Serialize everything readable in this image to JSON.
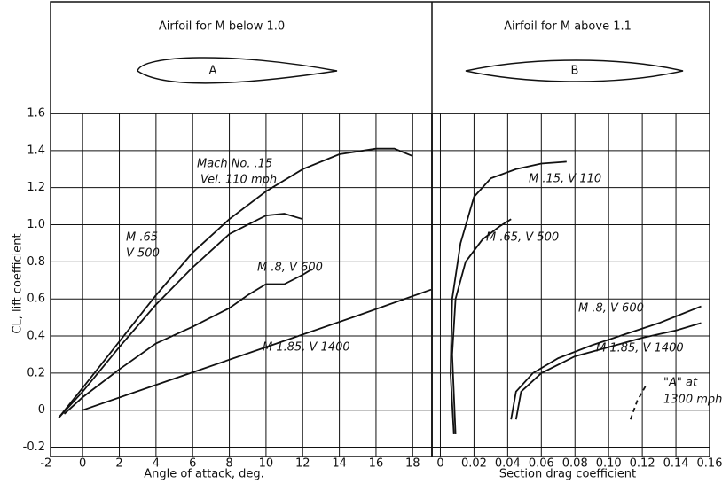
{
  "chart_data": [
    {
      "type": "line",
      "header": "Airfoil for M below 1.0",
      "airfoil_label": "A",
      "xlabel": "Angle of attack, deg.",
      "ylabel": "CL, lift coefficient",
      "xlim": [
        -1.75,
        19.05
      ],
      "ylim": [
        -0.25,
        1.6
      ],
      "xticks": [
        -2,
        0,
        2,
        4,
        6,
        8,
        10,
        12,
        14,
        16,
        18
      ],
      "yticks": [
        -0.2,
        0,
        0.2,
        0.4,
        0.6,
        0.8,
        {
          "value": 1,
          "label": "1.0"
        },
        1.2,
        1.4,
        1.6
      ],
      "grid": true,
      "series": [
        {
          "label": [
            "Mach No. .15",
            "Vel. 110 mph"
          ],
          "color": "#111111",
          "x": [
            -1.3,
            0,
            2,
            4,
            6,
            8,
            10,
            12,
            14,
            16,
            17,
            18
          ],
          "values": [
            -0.04,
            0.12,
            0.37,
            0.62,
            0.85,
            1.03,
            1.18,
            1.3,
            1.38,
            1.41,
            1.41,
            1.37
          ]
        },
        {
          "label": [
            "M  .65",
            "V  500"
          ],
          "color": "#111111",
          "x": [
            -1.3,
            0,
            2,
            4,
            6,
            8,
            10,
            11,
            12
          ],
          "values": [
            -0.04,
            0.1,
            0.34,
            0.57,
            0.77,
            0.95,
            1.05,
            1.06,
            1.03
          ]
        },
        {
          "label": [
            "M .8, V 600"
          ],
          "color": "#111111",
          "x": [
            -1,
            0,
            2,
            4,
            6,
            8,
            9,
            10,
            11,
            12,
            12.5
          ],
          "values": [
            -0.02,
            0.07,
            0.22,
            0.36,
            0.45,
            0.55,
            0.62,
            0.68,
            0.68,
            0.73,
            0.76
          ]
        },
        {
          "label": [
            "M 1.85, V 1400"
          ],
          "color": "#111111",
          "x": [
            0,
            5,
            10,
            15,
            19
          ],
          "values": [
            0,
            0.17,
            0.34,
            0.51,
            0.65
          ]
        }
      ]
    },
    {
      "type": "line",
      "header": "Airfoil for M above 1.1",
      "airfoil_label": "B",
      "xlabel": "Section drag coefficient",
      "xlim": [
        -0.005,
        0.16
      ],
      "ylim": [
        -0.25,
        1.6
      ],
      "xticks": [
        0,
        0.02,
        0.04,
        0.06,
        0.08,
        {
          "value": 0.1,
          "label": "0.10"
        },
        0.12,
        0.14,
        0.16
      ],
      "yticks": [
        -0.2,
        0,
        0.2,
        0.4,
        0.6,
        0.8,
        1,
        1.2,
        1.4
      ],
      "grid": true,
      "series": [
        {
          "label": [
            "M .15, V 110"
          ],
          "color": "#111111",
          "x": [
            0.008,
            0.006,
            0.007,
            0.012,
            0.02,
            0.03,
            0.045,
            0.06,
            0.075
          ],
          "values": [
            -0.13,
            0.2,
            0.6,
            0.9,
            1.15,
            1.25,
            1.3,
            1.33,
            1.34
          ]
        },
        {
          "label": [
            "M .65, V 500"
          ],
          "color": "#111111",
          "x": [
            0.009,
            0.007,
            0.009,
            0.015,
            0.025,
            0.035,
            0.042
          ],
          "values": [
            -0.13,
            0.3,
            0.6,
            0.8,
            0.92,
            0.99,
            1.03
          ]
        },
        {
          "label": [
            "M .8, V 600"
          ],
          "color": "#111111",
          "x": [
            0.042,
            0.045,
            0.055,
            0.07,
            0.09,
            0.11,
            0.13,
            0.155
          ],
          "values": [
            -0.05,
            0.1,
            0.2,
            0.28,
            0.35,
            0.41,
            0.47,
            0.56
          ]
        },
        {
          "label": [
            "M 1.85, V 1400"
          ],
          "color": "#111111",
          "x": [
            0.045,
            0.048,
            0.06,
            0.08,
            0.1,
            0.12,
            0.14,
            0.155
          ],
          "values": [
            -0.05,
            0.1,
            0.2,
            0.29,
            0.34,
            0.39,
            0.43,
            0.47
          ]
        },
        {
          "label": [
            "\"A\" at",
            "1300 mph"
          ],
          "color": "#111111",
          "dashed": true,
          "x": [
            0.113,
            0.117,
            0.122
          ],
          "values": [
            -0.05,
            0.05,
            0.13
          ]
        }
      ]
    }
  ]
}
